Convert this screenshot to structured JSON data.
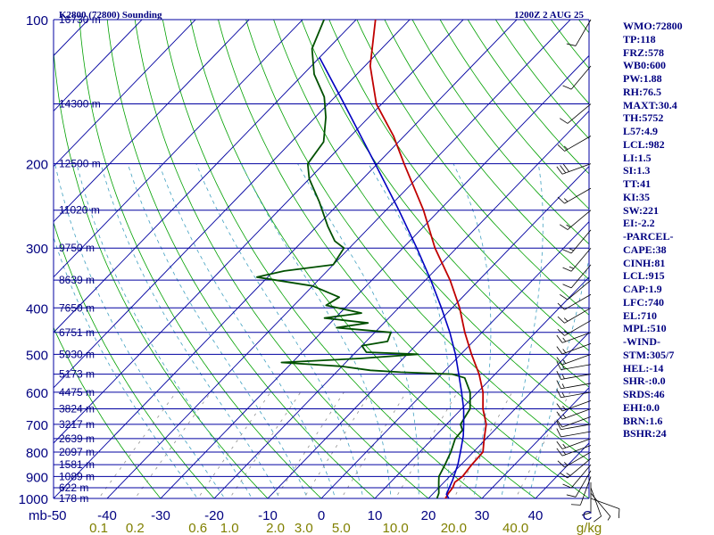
{
  "header": {
    "station_title": "K2800 (72800) Sounding",
    "valid_time": "1200Z  2 AUG 25"
  },
  "index_panel": [
    "WMO:72800",
    "TP:118",
    "FRZ:578",
    "WB0:600",
    "PW:1.88",
    "RH:76.5",
    "MAXT:30.4",
    "TH:5752",
    "L57:4.9",
    "LCL:982",
    "LI:1.5",
    "SI:1.3",
    "TT:41",
    "KI:35",
    "SW:221",
    "EI:-2.2",
    "-PARCEL-",
    "CAPE:38",
    "CINH:81",
    "LCL:915",
    "CAP:1.9",
    "LFC:740",
    "EL:710",
    "MPL:510",
    "-WIND-",
    "STM:305/7",
    "HEL:-14",
    "SHR-:0.0",
    "SRDS:46",
    "EHI:0.0",
    "BRN:1.6",
    "BSHR:24"
  ],
  "chart_data": {
    "type": "line",
    "title": "K2800 (72800) Sounding",
    "xlabel": "C",
    "ylabel": "mb",
    "mixing_ratio_unit": "g/kg",
    "xlim": [
      -50,
      50
    ],
    "ylim": [
      1000,
      100
    ],
    "log_pressure_axis": true,
    "grid": true,
    "colors": {
      "isobar": "#0000a0",
      "isotherm": "#0000a0",
      "dry_adiabat": "#00a000",
      "moist_adiabat": "#40a0c0",
      "mixing_ratio": "#909090",
      "temperature": "#c00000",
      "dewpoint": "#005000",
      "parcel": "#0000c0",
      "wind": "#000000",
      "text": "#000080",
      "mixing_label": "#808000"
    },
    "pressure_labels": [
      100,
      200,
      300,
      400,
      500,
      600,
      700,
      800,
      900,
      1000
    ],
    "temperature_ticks": [
      -50,
      -40,
      -30,
      -20,
      -10,
      0,
      10,
      20,
      30,
      40
    ],
    "temperature_tick_labels": [
      "mb-50",
      "-40",
      "-30",
      "-20",
      "-10",
      "0",
      "10",
      "20",
      "30",
      "40"
    ],
    "height_labels": [
      {
        "p": 100,
        "label": "16730 m"
      },
      {
        "p": 150,
        "label": "14300 m"
      },
      {
        "p": 200,
        "label": "12500 m"
      },
      {
        "p": 250,
        "label": "11020 m"
      },
      {
        "p": 300,
        "label": "9750 m"
      },
      {
        "p": 350,
        "label": "8639 m"
      },
      {
        "p": 400,
        "label": "7650 m"
      },
      {
        "p": 450,
        "label": "6751 m"
      },
      {
        "p": 500,
        "label": "5930 m"
      },
      {
        "p": 550,
        "label": "5173 m"
      },
      {
        "p": 600,
        "label": "4475 m"
      },
      {
        "p": 650,
        "label": "3824 m"
      },
      {
        "p": 700,
        "label": "3217 m"
      },
      {
        "p": 750,
        "label": "2639 m"
      },
      {
        "p": 800,
        "label": "2097 m"
      },
      {
        "p": 850,
        "label": "1581 m"
      },
      {
        "p": 900,
        "label": "1089 m"
      },
      {
        "p": 950,
        "label": "622 m"
      },
      {
        "p": 1000,
        "label": "178 m"
      }
    ],
    "mixing_ratio_labels": [
      {
        "w": 0.1,
        "label": "0.1"
      },
      {
        "w": 0.2,
        "label": "0.2"
      },
      {
        "w": 0.6,
        "label": "0.6"
      },
      {
        "w": 1.0,
        "label": "1.0"
      },
      {
        "w": 2.0,
        "label": "2.0"
      },
      {
        "w": 3.0,
        "label": "3.0"
      },
      {
        "w": 5.0,
        "label": "5.0"
      },
      {
        "w": 10.0,
        "label": "10.0"
      },
      {
        "w": 20.0,
        "label": "20.0"
      },
      {
        "w": 40.0,
        "label": "40.0"
      }
    ],
    "series": [
      {
        "name": "Temperature",
        "points": [
          [
            1008,
            22.6
          ],
          [
            1000,
            23.2
          ],
          [
            975,
            22.8
          ],
          [
            950,
            22.6
          ],
          [
            925,
            22.0
          ],
          [
            900,
            22.4
          ],
          [
            850,
            22.0
          ],
          [
            800,
            21.8
          ],
          [
            750,
            19.6
          ],
          [
            700,
            17.4
          ],
          [
            650,
            14.0
          ],
          [
            600,
            11.0
          ],
          [
            550,
            7.0
          ],
          [
            500,
            2.0
          ],
          [
            450,
            -3.2
          ],
          [
            400,
            -8.6
          ],
          [
            350,
            -15.4
          ],
          [
            300,
            -24.0
          ],
          [
            250,
            -33.0
          ],
          [
            200,
            -45.0
          ],
          [
            175,
            -52.0
          ],
          [
            150,
            -61.0
          ],
          [
            125,
            -69.0
          ],
          [
            100,
            -76.4
          ]
        ]
      },
      {
        "name": "Dewpoint",
        "points": [
          [
            1008,
            22.0
          ],
          [
            1000,
            21.6
          ],
          [
            975,
            21.0
          ],
          [
            950,
            20.0
          ],
          [
            925,
            19.0
          ],
          [
            900,
            18.0
          ],
          [
            850,
            17.0
          ],
          [
            800,
            15.8
          ],
          [
            750,
            14.2
          ],
          [
            720,
            14.0
          ],
          [
            700,
            12.6
          ],
          [
            650,
            11.6
          ],
          [
            600,
            8.6
          ],
          [
            560,
            5.0
          ],
          [
            550,
            2.0
          ],
          [
            545,
            -8.0
          ],
          [
            540,
            -14.0
          ],
          [
            530,
            -20.0
          ],
          [
            520,
            -32.0
          ],
          [
            510,
            -18.0
          ],
          [
            500,
            -8.0
          ],
          [
            495,
            -18.0
          ],
          [
            480,
            -20.0
          ],
          [
            470,
            -16.0
          ],
          [
            450,
            -17.0
          ],
          [
            440,
            -28.0
          ],
          [
            430,
            -23.0
          ],
          [
            420,
            -32.0
          ],
          [
            410,
            -26.0
          ],
          [
            395,
            -34.0
          ],
          [
            380,
            -33.0
          ],
          [
            360,
            -40.0
          ],
          [
            345,
            -52.0
          ],
          [
            335,
            -48.0
          ],
          [
            325,
            -40.0
          ],
          [
            300,
            -41.0
          ],
          [
            290,
            -44.0
          ],
          [
            270,
            -48.0
          ],
          [
            240,
            -54.0
          ],
          [
            215,
            -60.0
          ],
          [
            200,
            -63.0
          ],
          [
            180,
            -64.0
          ],
          [
            160,
            -68.0
          ],
          [
            145,
            -72.0
          ],
          [
            130,
            -78.0
          ],
          [
            115,
            -83.0
          ],
          [
            100,
            -86.0
          ]
        ]
      },
      {
        "name": "Parcel",
        "points": [
          [
            1008,
            24.6
          ],
          [
            1000,
            23.8
          ],
          [
            980,
            22.6
          ],
          [
            915,
            21.2
          ],
          [
            850,
            19.4
          ],
          [
            800,
            17.6
          ],
          [
            740,
            15.2
          ],
          [
            700,
            13.2
          ],
          [
            650,
            10.4
          ],
          [
            600,
            7.0
          ],
          [
            550,
            3.2
          ],
          [
            500,
            -1.0
          ],
          [
            450,
            -6.0
          ],
          [
            400,
            -12.0
          ],
          [
            350,
            -19.0
          ],
          [
            300,
            -27.4
          ],
          [
            250,
            -37.6
          ],
          [
            200,
            -50.4
          ],
          [
            150,
            -67.0
          ],
          [
            120,
            -80.0
          ]
        ]
      }
    ],
    "winds": [
      {
        "p": 1000,
        "dir": 110,
        "spd": 10
      },
      {
        "p": 975,
        "dir": 140,
        "spd": 5
      },
      {
        "p": 950,
        "dir": 160,
        "spd": 10
      },
      {
        "p": 925,
        "dir": 180,
        "spd": 10
      },
      {
        "p": 900,
        "dir": 200,
        "spd": 10
      },
      {
        "p": 875,
        "dir": 210,
        "spd": 10
      },
      {
        "p": 850,
        "dir": 220,
        "spd": 10
      },
      {
        "p": 825,
        "dir": 230,
        "spd": 15
      },
      {
        "p": 800,
        "dir": 240,
        "spd": 15
      },
      {
        "p": 775,
        "dir": 250,
        "spd": 15
      },
      {
        "p": 750,
        "dir": 250,
        "spd": 15
      },
      {
        "p": 725,
        "dir": 260,
        "spd": 10
      },
      {
        "p": 700,
        "dir": 260,
        "spd": 10
      },
      {
        "p": 675,
        "dir": 250,
        "spd": 10
      },
      {
        "p": 650,
        "dir": 250,
        "spd": 15
      },
      {
        "p": 625,
        "dir": 250,
        "spd": 15
      },
      {
        "p": 600,
        "dir": 260,
        "spd": 15
      },
      {
        "p": 575,
        "dir": 260,
        "spd": 15
      },
      {
        "p": 550,
        "dir": 260,
        "spd": 15
      },
      {
        "p": 525,
        "dir": 260,
        "spd": 15
      },
      {
        "p": 500,
        "dir": 250,
        "spd": 15
      },
      {
        "p": 475,
        "dir": 250,
        "spd": 15
      },
      {
        "p": 450,
        "dir": 250,
        "spd": 15
      },
      {
        "p": 425,
        "dir": 240,
        "spd": 15
      },
      {
        "p": 400,
        "dir": 240,
        "spd": 15
      },
      {
        "p": 375,
        "dir": 240,
        "spd": 10
      },
      {
        "p": 350,
        "dir": 230,
        "spd": 10
      },
      {
        "p": 325,
        "dir": 220,
        "spd": 10
      },
      {
        "p": 300,
        "dir": 220,
        "spd": 15
      },
      {
        "p": 275,
        "dir": 220,
        "spd": 15
      },
      {
        "p": 250,
        "dir": 230,
        "spd": 15
      },
      {
        "p": 225,
        "dir": 240,
        "spd": 15
      },
      {
        "p": 200,
        "dir": 250,
        "spd": 30
      },
      {
        "p": 175,
        "dir": 240,
        "spd": 15
      },
      {
        "p": 150,
        "dir": 230,
        "spd": 10
      },
      {
        "p": 125,
        "dir": 220,
        "spd": 10
      },
      {
        "p": 100,
        "dir": 210,
        "spd": 10
      }
    ]
  }
}
